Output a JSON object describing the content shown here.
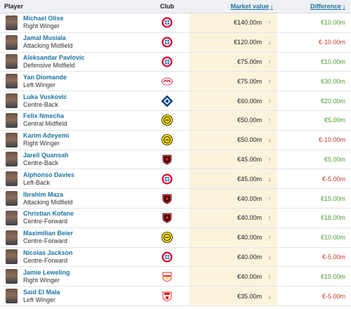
{
  "header": {
    "player": "Player",
    "club": "Club",
    "market_value": "Market value",
    "difference": "Difference",
    "sort_glyph": "↕"
  },
  "colors": {
    "up": "#4c9d2f",
    "down": "#c0392b",
    "link": "#1d75a3",
    "value_bg": "#fbf3dc"
  },
  "rows": [
    {
      "name": "Michael Olise",
      "position": "Right Winger",
      "club": "bayern",
      "value": "€140.00m",
      "trend": "up",
      "diff": "€10.00m"
    },
    {
      "name": "Jamal Musiala",
      "position": "Attacking Midfield",
      "club": "bayern",
      "value": "€120.00m",
      "trend": "down",
      "diff": "€-10.00m"
    },
    {
      "name": "Aleksandar Pavlovic",
      "position": "Defensive Midfield",
      "club": "bayern",
      "value": "€75.00m",
      "trend": "up",
      "diff": "€10.00m"
    },
    {
      "name": "Yan Diomande",
      "position": "Left Winger",
      "club": "leipzig",
      "value": "€75.00m",
      "trend": "up",
      "diff": "€30.00m"
    },
    {
      "name": "Luka Vuskovic",
      "position": "Centre-Back",
      "club": "hamburg",
      "value": "€60.00m",
      "trend": "up",
      "diff": "€20.00m"
    },
    {
      "name": "Felix Nmecha",
      "position": "Central Midfield",
      "club": "dortmund",
      "value": "€50.00m",
      "trend": "up",
      "diff": "€5.00m"
    },
    {
      "name": "Karim Adeyemi",
      "position": "Right Winger",
      "club": "dortmund",
      "value": "€50.00m",
      "trend": "down",
      "diff": "€-10.00m"
    },
    {
      "name": "Jarell Quansah",
      "position": "Centre-Back",
      "club": "leverkusen",
      "value": "€45.00m",
      "trend": "up",
      "diff": "€5.00m"
    },
    {
      "name": "Alphonso Davies",
      "position": "Left-Back",
      "club": "bayern",
      "value": "€45.00m",
      "trend": "down",
      "diff": "€-5.00m"
    },
    {
      "name": "Ibrahim Maza",
      "position": "Attacking Midfield",
      "club": "leverkusen",
      "value": "€40.00m",
      "trend": "up",
      "diff": "€15.00m"
    },
    {
      "name": "Christian Kofane",
      "position": "Centre-Forward",
      "club": "leverkusen",
      "value": "€40.00m",
      "trend": "up",
      "diff": "€18.00m"
    },
    {
      "name": "Maximilian Beier",
      "position": "Centre-Forward",
      "club": "dortmund",
      "value": "€40.00m",
      "trend": "up",
      "diff": "€10.00m"
    },
    {
      "name": "Nicolas Jackson",
      "position": "Centre-Forward",
      "club": "bayern",
      "value": "€40.00m",
      "trend": "down",
      "diff": "€-5.00m"
    },
    {
      "name": "Jamie Leweling",
      "position": "Right Winger",
      "club": "stuttgart",
      "value": "€40.00m",
      "trend": "up",
      "diff": "€15.00m"
    },
    {
      "name": "Said El Mala",
      "position": "Left Winger",
      "club": "koln",
      "value": "€35.00m",
      "trend": "down",
      "diff": "€-5.00m"
    }
  ]
}
